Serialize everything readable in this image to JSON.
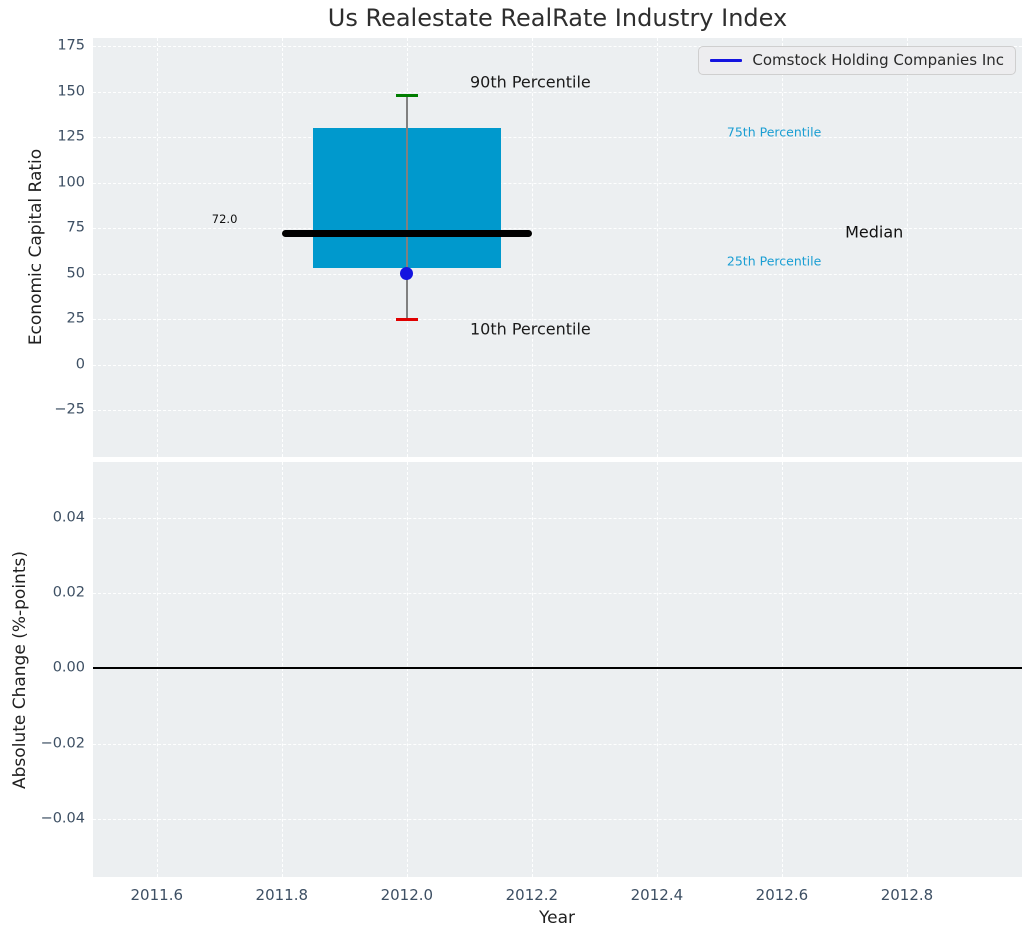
{
  "chart_data": {
    "type": "box",
    "title": "Us Realestate RealRate Industry Index",
    "xlabel": "Year",
    "x_ticks": [
      2011.6,
      2011.8,
      2012.0,
      2012.2,
      2012.4,
      2012.6,
      2012.8
    ],
    "xlim": [
      2011.498,
      2012.984
    ],
    "grid": "white dashed on light gray",
    "legend": {
      "label": "Comstock Holding Companies Inc",
      "color": "#1414e0",
      "position": "upper right"
    },
    "panels": [
      {
        "ylabel": "Economic Capital Ratio",
        "y_ticks": [
          175,
          150,
          125,
          100,
          75,
          50,
          25,
          0,
          -25
        ],
        "ylim": [
          -50.8,
          179.4
        ],
        "box": {
          "center_x": 2012.0,
          "box_left": 2011.85,
          "box_right": 2012.15,
          "q1": 53,
          "q3": 130,
          "median": 72.0,
          "median_line_left": 2011.8,
          "median_line_right": 2012.2,
          "percentile_10": 25,
          "percentile_90": 148
        },
        "series": [
          {
            "name": "Comstock Holding Companies Inc",
            "x": [
              2012.0
            ],
            "y": [
              50
            ],
            "marker": "circle",
            "color": "#1414e0"
          }
        ],
        "annotations": [
          {
            "text": "90th Percentile",
            "x": 2012.101,
            "y": 155,
            "color": "#1a1a1a",
            "size": 16
          },
          {
            "text": "10th Percentile",
            "x": 2012.101,
            "y": 19.5,
            "color": "#1a1a1a",
            "size": 16
          },
          {
            "text": "Median",
            "x": 2012.701,
            "y": 73,
            "color": "#111111",
            "size": 16
          },
          {
            "text": "75th Percentile",
            "x": 2012.512,
            "y": 128,
            "color": "#1a9ed3",
            "size": 12.5
          },
          {
            "text": "25th Percentile",
            "x": 2012.512,
            "y": 57,
            "color": "#1a9ed3",
            "size": 12.5
          },
          {
            "text": "72.0",
            "x": 2011.688,
            "y": 80,
            "color": "#111111",
            "size": 11.5
          }
        ]
      },
      {
        "ylabel": "Absolute Change (%-points)",
        "y_ticks": [
          0.04,
          0.02,
          0.0,
          -0.02,
          -0.04
        ],
        "ylim": [
          -0.0554,
          0.0548
        ],
        "zero_line": 0.0,
        "series": []
      }
    ],
    "colors": {
      "panel_bg": "#eceff1",
      "grid": "#ffffff",
      "tick_label": "#3d4f63",
      "box_fill": "#0099cd",
      "median_line": "#000000",
      "whisker": "#808080",
      "cap_high": "#007d00",
      "cap_low": "#e00000",
      "point": "#1414e0",
      "zero_line": "#000000"
    }
  }
}
